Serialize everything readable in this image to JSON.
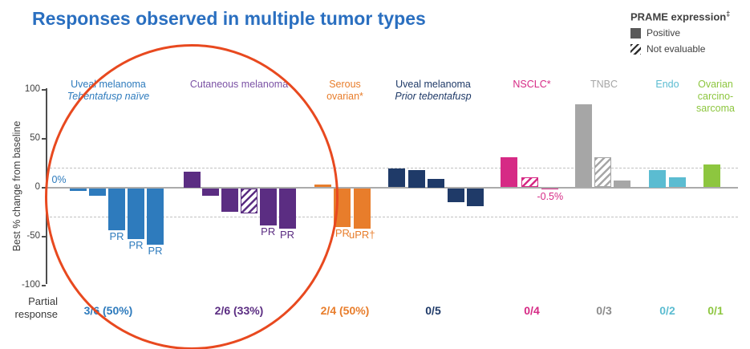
{
  "chart_data": {
    "type": "bar",
    "title": "Responses observed in multiple tumor types",
    "ylabel": "Best % change from baseline",
    "ylim": [
      -100,
      100
    ],
    "y_ticks": [
      {
        "label": "100",
        "value": 100
      },
      {
        "label": "50",
        "value": 50
      },
      {
        "label": "0",
        "value": 0
      },
      {
        "label": "-50",
        "value": -50
      },
      {
        "label": "-100",
        "value": -100
      }
    ],
    "reference_lines_pct": [
      20,
      -30
    ],
    "legend": {
      "title": "PRAME expression",
      "title_sup": "‡",
      "entries": [
        {
          "label": "Positive",
          "pattern": "solid"
        },
        {
          "label": "Not evaluable",
          "pattern": "hatched"
        }
      ]
    },
    "footer_label": [
      "Partial",
      "response"
    ],
    "groups": [
      {
        "name_lines": [
          "Uveal melanoma"
        ],
        "subtitle": "Tebentafusp naïve",
        "color": "#2e7bbd",
        "count": "3/6 (50%)",
        "bars": [
          {
            "value": 0,
            "annotation": "0%"
          },
          {
            "value": -3
          },
          {
            "value": -8
          },
          {
            "value": -43,
            "label": "PR"
          },
          {
            "value": -52,
            "label": "PR"
          },
          {
            "value": -58,
            "label": "PR"
          }
        ]
      },
      {
        "name_lines": [
          "Cutaneous melanoma"
        ],
        "color": "#5b2d82",
        "label_color": "#7b52a5",
        "count": "2/6 (33%)",
        "bars": [
          {
            "value": 16
          },
          {
            "value": -8
          },
          {
            "value": -24
          },
          {
            "value": -26,
            "pattern": "hatched"
          },
          {
            "value": -38,
            "label": "PR"
          },
          {
            "value": -41,
            "label": "PR"
          }
        ]
      },
      {
        "name_lines": [
          "Serous",
          "ovarian*"
        ],
        "color": "#e87d2b",
        "count": "2/4 (50%)",
        "bars": [
          {
            "value": 3
          },
          {
            "value": -40,
            "label": "PR"
          },
          {
            "value": -41,
            "label": "uPR†"
          }
        ]
      },
      {
        "name_lines": [
          "Uveal melanoma"
        ],
        "subtitle": "Prior tebentafusp",
        "color": "#1f3a68",
        "count": "0/5",
        "bars": [
          {
            "value": 19
          },
          {
            "value": 18
          },
          {
            "value": 9
          },
          {
            "value": -14
          },
          {
            "value": -18
          }
        ]
      },
      {
        "name_lines": [
          "NSCLC*"
        ],
        "color": "#d62a85",
        "count": "0/4",
        "bars": [
          {
            "value": 31
          },
          {
            "value": 10,
            "pattern": "hatched"
          },
          {
            "value": -0.5,
            "annotation": "-0.5%"
          }
        ]
      },
      {
        "name_lines": [
          "TNBC"
        ],
        "color": "#a6a6a6",
        "count_color": "#8c8c8c",
        "count": "0/3",
        "bars": [
          {
            "value": 85
          },
          {
            "value": 31,
            "pattern": "hatched"
          },
          {
            "value": 7
          }
        ]
      },
      {
        "name_lines": [
          "Endo"
        ],
        "color": "#5bbcd1",
        "count": "0/2",
        "bars": [
          {
            "value": 18
          },
          {
            "value": 10
          }
        ]
      },
      {
        "name_lines": [
          "Ovarian",
          "carcino-",
          "sarcoma"
        ],
        "color": "#8dc63f",
        "count": "0/1",
        "bars": [
          {
            "value": 23
          }
        ]
      }
    ]
  }
}
